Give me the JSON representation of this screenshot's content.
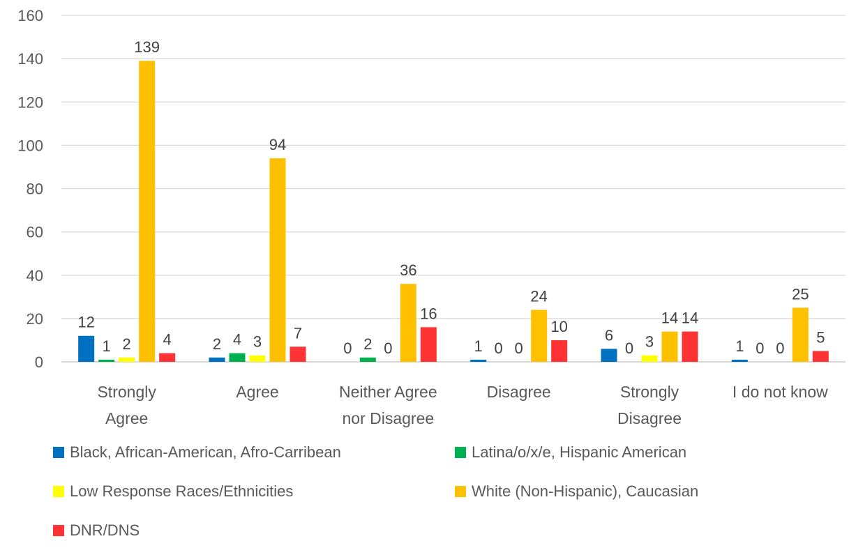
{
  "chart_data": {
    "type": "bar",
    "categories": [
      [
        "Strongly",
        "Agree"
      ],
      [
        "Agree"
      ],
      [
        "Neither Agree",
        "nor Disagree"
      ],
      [
        "Disagree"
      ],
      [
        "Strongly",
        "Disagree"
      ],
      [
        "I do not know"
      ]
    ],
    "series": [
      {
        "name": "Black, African-American, Afro-Carribean",
        "color": "#0070C0",
        "values": [
          12,
          2,
          0,
          1,
          6,
          1
        ]
      },
      {
        "name": "Latina/o/x/e, Hispanic American",
        "color": "#00B050",
        "values": [
          1,
          4,
          2,
          0,
          0,
          0
        ]
      },
      {
        "name": "Low Response Races/Ethnicities",
        "color": "#FFFF00",
        "values": [
          2,
          3,
          0,
          0,
          3,
          0
        ]
      },
      {
        "name": "White (Non-Hispanic), Caucasian",
        "color": "#FFC000",
        "values": [
          139,
          94,
          36,
          24,
          14,
          25
        ]
      },
      {
        "name": "DNR/DNS",
        "color": "#FF3333",
        "values": [
          4,
          7,
          16,
          10,
          14,
          5
        ]
      }
    ],
    "yticks": [
      0,
      20,
      40,
      60,
      80,
      100,
      120,
      140,
      160
    ],
    "ylim": [
      0,
      160
    ],
    "grid": true,
    "legend": "bottom"
  }
}
